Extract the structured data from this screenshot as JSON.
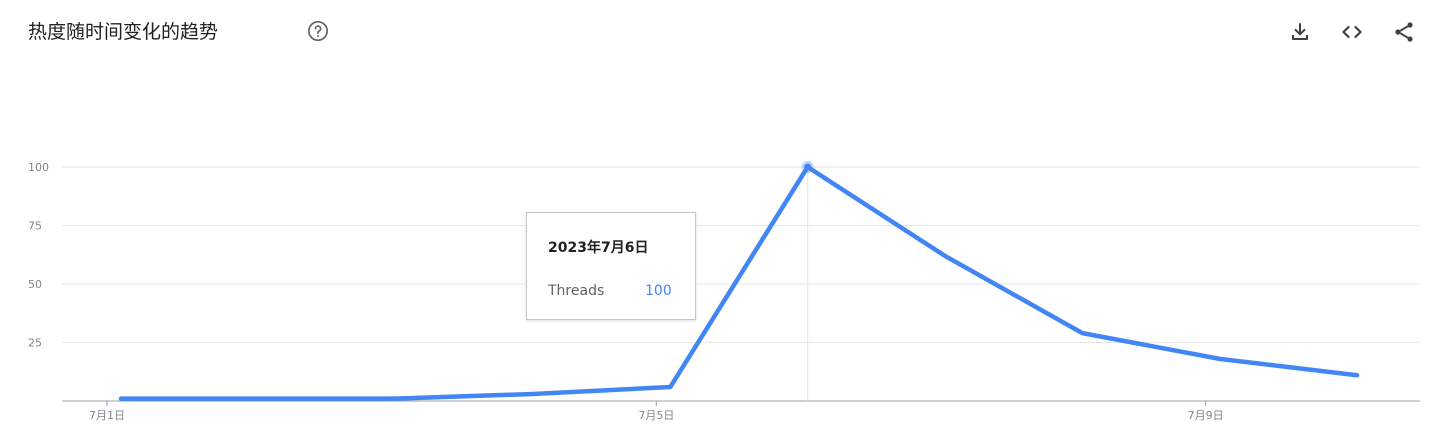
{
  "header": {
    "title": "热度随时间变化的趋势",
    "icons": [
      "help-icon",
      "download-icon",
      "embed-icon",
      "share-icon"
    ]
  },
  "tooltip": {
    "date": "2023年7月6日",
    "series_name": "Threads",
    "value": "100"
  },
  "colors": {
    "line": "#4285f4",
    "grid": "#e6e6e6",
    "axis": "#9aa0a6",
    "tick_text": "#80868b",
    "tooltip_value": "#4285f4"
  },
  "chart_data": {
    "type": "line",
    "title": "",
    "xlabel": "",
    "ylabel": "",
    "x": [
      "7月1日",
      "7月2日",
      "7月3日",
      "7月4日",
      "7月5日",
      "7月6日",
      "7月7日",
      "7月8日",
      "7月9日",
      "7月10日"
    ],
    "x_tick_labels": [
      "7月1日",
      "7月5日",
      "7月9日"
    ],
    "y_ticks": [
      25,
      50,
      75,
      100
    ],
    "ylim": [
      0,
      100
    ],
    "grid": true,
    "series": [
      {
        "name": "Threads",
        "values": [
          1,
          1,
          1,
          3,
          6,
          100,
          62,
          29,
          18,
          11
        ]
      }
    ],
    "highlight_index": 5
  }
}
